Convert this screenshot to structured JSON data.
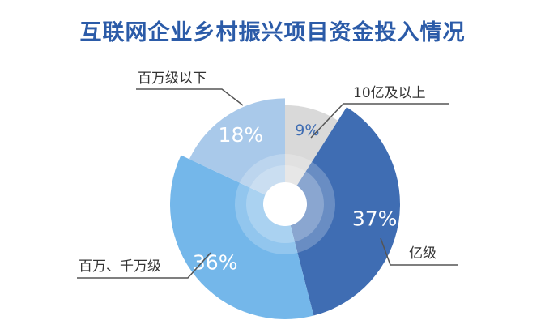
{
  "chart_data": {
    "type": "pie",
    "variant": "donut",
    "title": "互联网企业乡村振兴项目资金投入情况",
    "categories": [
      "10亿及以上",
      "亿级",
      "百万、千万级",
      "百万级以下"
    ],
    "values": [
      9,
      37,
      36,
      18
    ],
    "value_labels": [
      "9%",
      "37%",
      "36%",
      "18%"
    ],
    "unit": "%",
    "colors": [
      "#d9d9d9",
      "#3f6db3",
      "#74b7ea",
      "#a9c9ea"
    ],
    "value_label_colors": [
      "#3f6db3",
      "#ffffff",
      "#ffffff",
      "#ffffff"
    ]
  }
}
